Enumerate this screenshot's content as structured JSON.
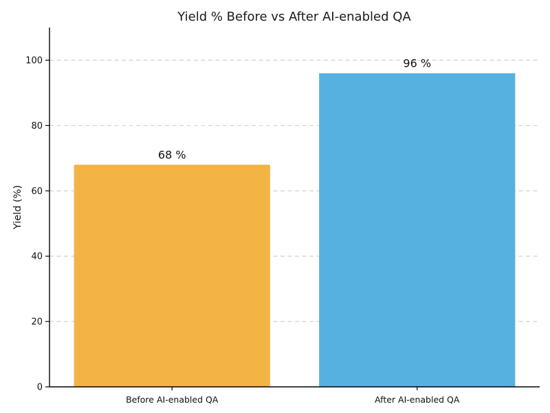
{
  "chart_data": {
    "type": "bar",
    "title": "Yield % Before vs After AI-enabled QA",
    "ylabel": "Yield (%)",
    "xlabel": "",
    "categories": [
      "Before AI-enabled QA",
      "After AI-enabled QA"
    ],
    "values": [
      68,
      96
    ],
    "value_labels": [
      "68 %",
      "96 %"
    ],
    "bar_colors": [
      "#F2B444",
      "#57B1E0"
    ],
    "yticks": [
      0,
      20,
      40,
      60,
      80,
      100
    ],
    "ytick_labels": [
      "0",
      "20",
      "40",
      "60",
      "80",
      "100"
    ],
    "ylim": [
      0,
      110
    ],
    "grid": "horizontal-dashed",
    "grid_color": "#cccccc",
    "axis_color": "#000000",
    "title_color": "#1a1a1a",
    "text_color": "#111111",
    "legend": "none",
    "background": "#ffffff"
  }
}
